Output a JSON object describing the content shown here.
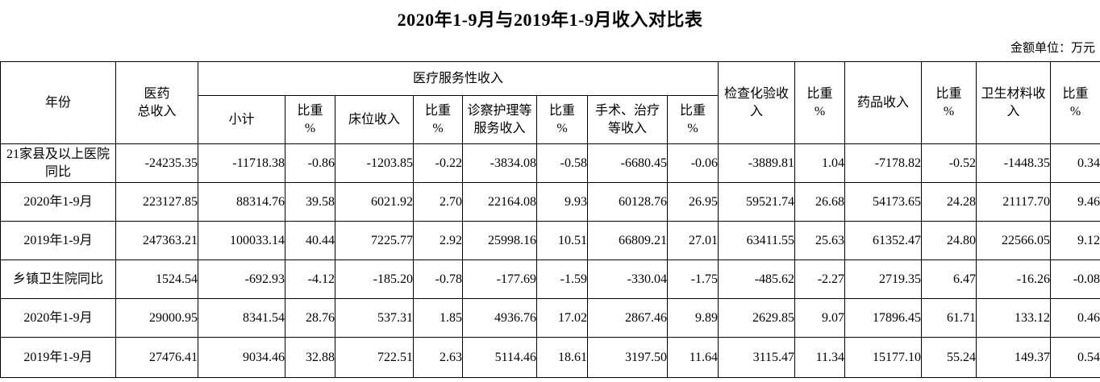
{
  "page": {
    "title": "2020年1-9月与2019年1-9月收入对比表",
    "unit_note": "金额单位：万元"
  },
  "table": {
    "headers": {
      "year": "年份",
      "total_medical_income": "医药\n总收入",
      "medical_service_group": "医疗服务性收入",
      "subtotal": "小计",
      "proportion": "比重\n%",
      "bed_income": "床位收入",
      "exam_nursing_income": "诊察护理等\n服务收入",
      "surgery_treatment_income": "手术、治疗\n等收入",
      "inspection_lab_income": "检查化验收\n入",
      "drug_income": "药品收入",
      "sanitary_material_income": "卫生材料收\n入"
    },
    "rows": [
      {
        "label": "21家县及以上医院同比",
        "values": [
          "-24235.35",
          "-11718.38",
          "-0.86",
          "-1203.85",
          "-0.22",
          "-3834.08",
          "-0.58",
          "-6680.45",
          "-0.06",
          "-3889.81",
          "1.04",
          "-7178.82",
          "-0.52",
          "-1448.35",
          "0.34"
        ]
      },
      {
        "label": "2020年1-9月",
        "values": [
          "223127.85",
          "88314.76",
          "39.58",
          "6021.92",
          "2.70",
          "22164.08",
          "9.93",
          "60128.76",
          "26.95",
          "59521.74",
          "26.68",
          "54173.65",
          "24.28",
          "21117.70",
          "9.46"
        ]
      },
      {
        "label": "2019年1-9月",
        "values": [
          "247363.21",
          "100033.14",
          "40.44",
          "7225.77",
          "2.92",
          "25998.16",
          "10.51",
          "66809.21",
          "27.01",
          "63411.55",
          "25.63",
          "61352.47",
          "24.80",
          "22566.05",
          "9.12"
        ]
      },
      {
        "label": "乡镇卫生院同比",
        "values": [
          "1524.54",
          "-692.93",
          "-4.12",
          "-185.20",
          "-0.78",
          "-177.69",
          "-1.59",
          "-330.04",
          "-1.75",
          "-485.62",
          "-2.27",
          "2719.35",
          "6.47",
          "-16.26",
          "-0.08"
        ]
      },
      {
        "label": "2020年1-9月",
        "values": [
          "29000.95",
          "8341.54",
          "28.76",
          "537.31",
          "1.85",
          "4936.76",
          "17.02",
          "2867.46",
          "9.89",
          "2629.85",
          "9.07",
          "17896.45",
          "61.71",
          "133.12",
          "0.46"
        ]
      },
      {
        "label": "2019年1-9月",
        "values": [
          "27476.41",
          "9034.46",
          "32.88",
          "722.51",
          "2.63",
          "5114.46",
          "18.61",
          "3197.50",
          "11.64",
          "3115.47",
          "11.34",
          "15177.10",
          "55.24",
          "149.37",
          "0.54"
        ]
      }
    ]
  }
}
